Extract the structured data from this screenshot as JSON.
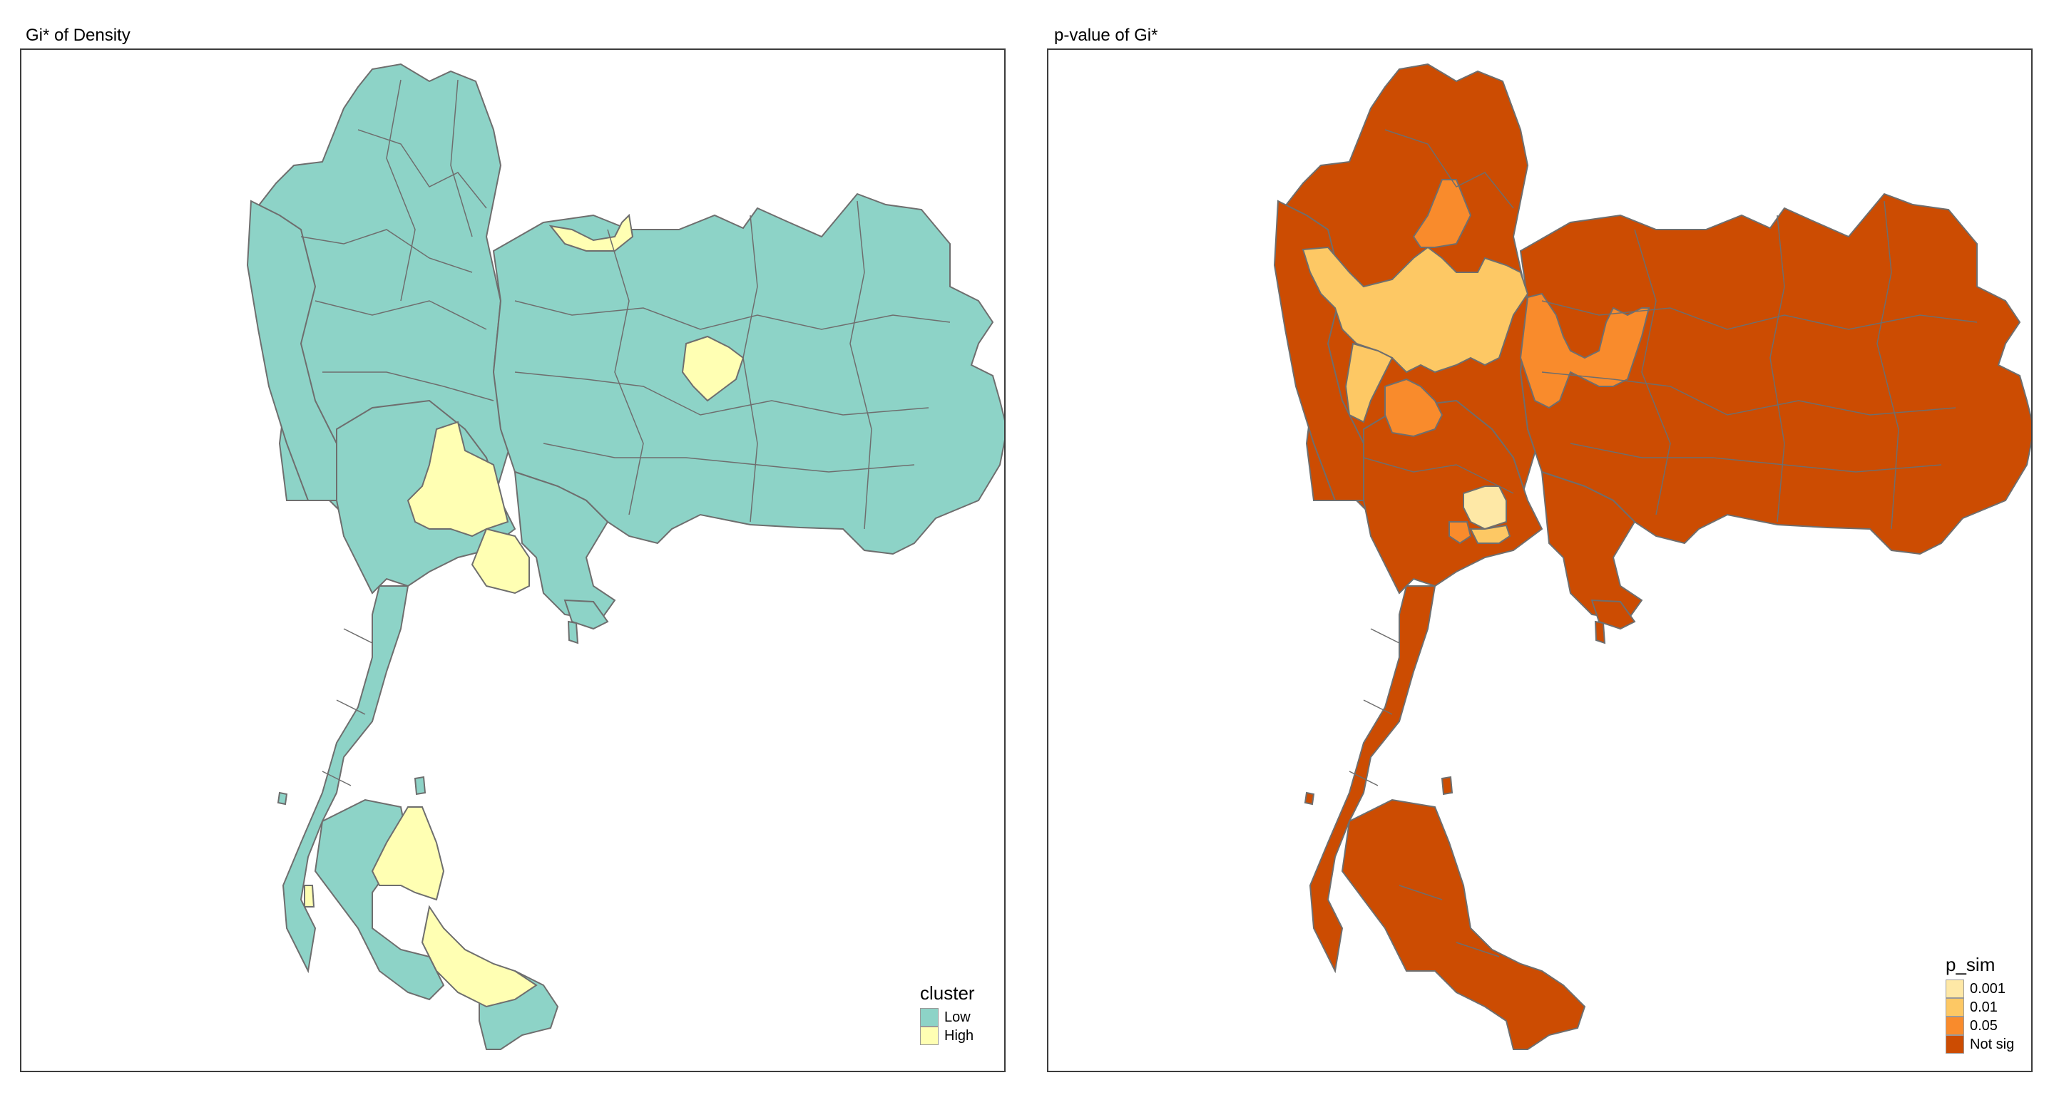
{
  "panels": [
    {
      "title": "Gi* of Density",
      "legend": {
        "title": "cluster",
        "items": [
          {
            "label": "Low",
            "color": "#8dd3c7"
          },
          {
            "label": "High",
            "color": "#ffffb3"
          }
        ]
      }
    },
    {
      "title": "p-value of Gi*",
      "legend": {
        "title": "p_sim",
        "items": [
          {
            "label": "0.001",
            "color": "#fee8a6"
          },
          {
            "label": "0.01",
            "color": "#fdc864"
          },
          {
            "label": "0.05",
            "color": "#f98b2c"
          },
          {
            "label": "Not sig",
            "color": "#cc4c02"
          }
        ]
      }
    }
  ],
  "colors": {
    "border": "#6e6e6e",
    "frame": "#3c3c3c"
  }
}
